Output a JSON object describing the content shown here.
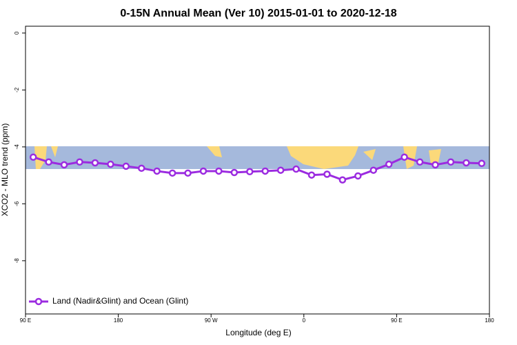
{
  "chart_data": {
    "type": "line",
    "title": "0-15N Annual Mean (Ver 10)   2015-01-01 to 2020-12-18",
    "x_label": "Longitude (deg E)",
    "y_label": "XCO2 - MLO trend (ppm)",
    "x": [
      97.5,
      112.5,
      127.5,
      142.5,
      157.5,
      172.5,
      187.5,
      202.5,
      217.5,
      232.5,
      247.5,
      262.5,
      277.5,
      292.5,
      307.5,
      322.5,
      337.5,
      352.5,
      367.5,
      382.5,
      397.5,
      412.5,
      427.5,
      442.5,
      457.5,
      472.5,
      487.5,
      502.5,
      517.5,
      532.5
    ],
    "series": [
      {
        "name": "Land (Nadir&Glint) and Ocean (Glint)",
        "color": "#9b2be0",
        "values": [
          -4.36,
          -4.53,
          -4.63,
          -4.53,
          -4.56,
          -4.61,
          -4.68,
          -4.75,
          -4.85,
          -4.92,
          -4.92,
          -4.85,
          -4.85,
          -4.9,
          -4.87,
          -4.85,
          -4.82,
          -4.78,
          -4.99,
          -4.96,
          -5.16,
          -5.02,
          -4.82,
          -4.61,
          -4.36,
          -4.53,
          -4.63,
          -4.53,
          -4.56,
          -4.58
        ]
      }
    ],
    "xlim": [
      90,
      540
    ],
    "xticks": [
      {
        "value": 90,
        "label": "90 E"
      },
      {
        "value": 180,
        "label": "180"
      },
      {
        "value": 270,
        "label": "90 W"
      },
      {
        "value": 360,
        "label": "0"
      },
      {
        "value": 450,
        "label": "90 E"
      },
      {
        "value": 540,
        "label": "180"
      }
    ],
    "ylim": [
      -9.87,
      0.24
    ],
    "yticks": [
      0,
      -2,
      -4,
      -6,
      -8
    ],
    "legend": "bottom-left"
  }
}
